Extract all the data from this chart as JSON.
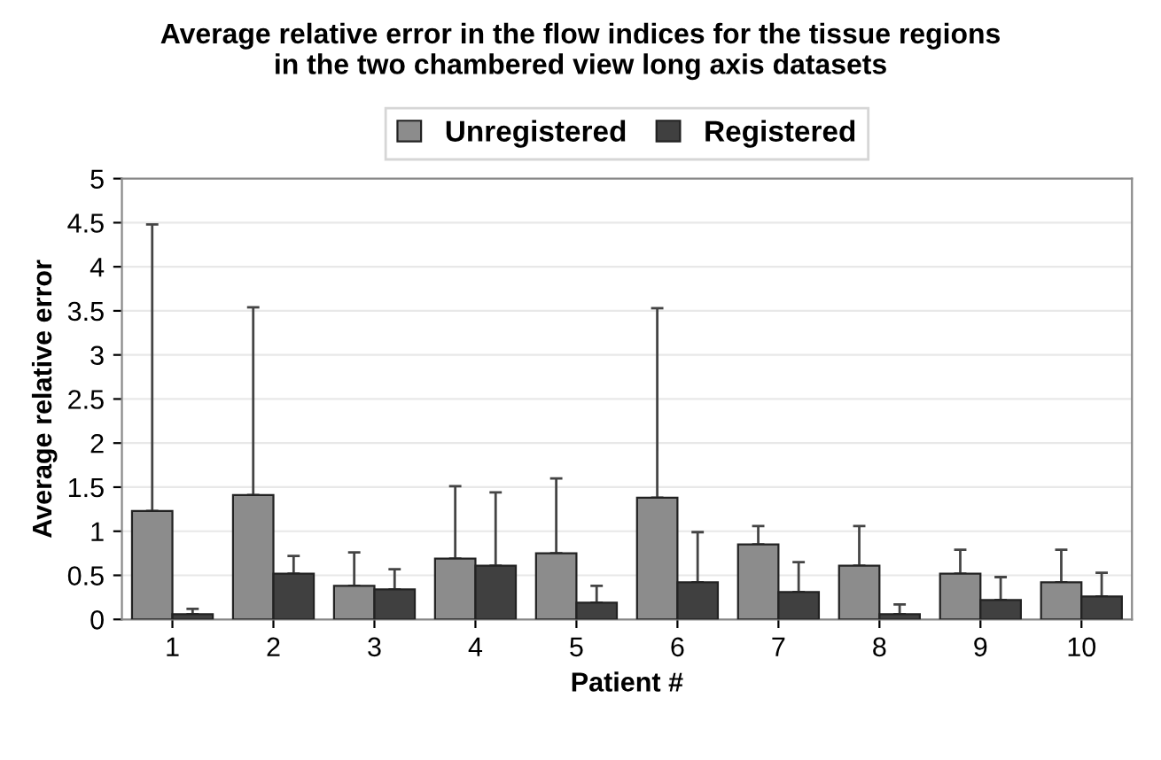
{
  "chart_data": {
    "type": "bar",
    "title": "Average relative error in the flow indices for the tissue regions\nin the two chambered view long axis datasets",
    "xlabel": "Patient #",
    "ylabel": "Average relative error",
    "categories": [
      "1",
      "2",
      "3",
      "4",
      "5",
      "6",
      "7",
      "8",
      "9",
      "10"
    ],
    "series": [
      {
        "name": "Unregistered",
        "color": "#8c8c8c",
        "values": [
          1.23,
          1.41,
          0.38,
          0.69,
          0.75,
          1.38,
          0.85,
          0.61,
          0.52,
          0.42
        ],
        "errors": [
          [
            1.23,
            4.48
          ],
          [
            1.41,
            3.54
          ],
          [
            0.38,
            0.76
          ],
          [
            0.69,
            1.51
          ],
          [
            0.75,
            1.6
          ],
          [
            1.38,
            3.53
          ],
          [
            0.85,
            1.06
          ],
          [
            0.61,
            1.06
          ],
          [
            0.52,
            0.79
          ],
          [
            0.42,
            0.79
          ]
        ]
      },
      {
        "name": "Registered",
        "color": "#404040",
        "values": [
          0.06,
          0.52,
          0.34,
          0.61,
          0.19,
          0.42,
          0.31,
          0.06,
          0.22,
          0.26
        ],
        "errors": [
          [
            0.06,
            0.12
          ],
          [
            0.52,
            0.72
          ],
          [
            0.34,
            0.57
          ],
          [
            0.61,
            1.44
          ],
          [
            0.19,
            0.38
          ],
          [
            0.42,
            0.99
          ],
          [
            0.31,
            0.65
          ],
          [
            0.06,
            0.17
          ],
          [
            0.22,
            0.48
          ],
          [
            0.26,
            0.53
          ]
        ]
      }
    ],
    "ylim": [
      0,
      5
    ],
    "yticks": [
      0,
      0.5,
      1,
      1.5,
      2,
      2.5,
      3,
      3.5,
      4,
      4.5,
      5
    ],
    "grid": "y",
    "legend": "top"
  }
}
